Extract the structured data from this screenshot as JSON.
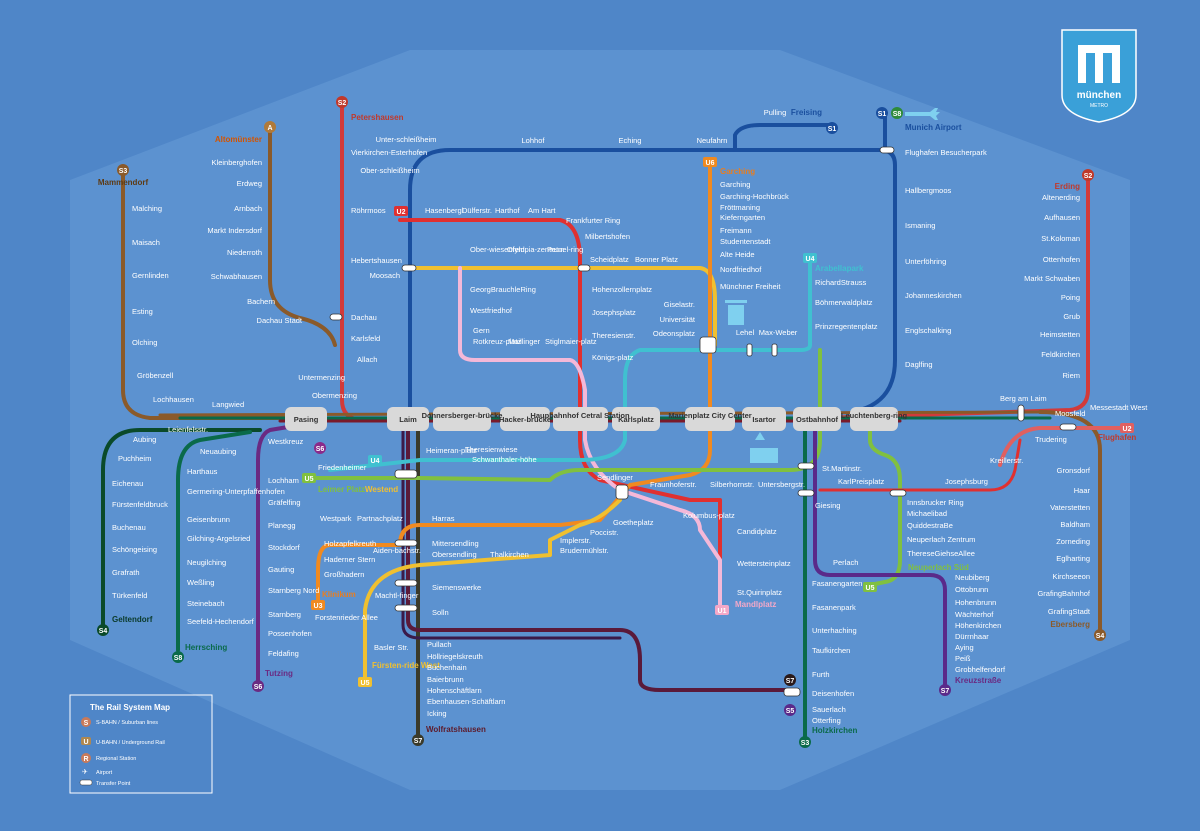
{
  "logo": {
    "name": "münchen",
    "sub": "METRO"
  },
  "legend": {
    "title": "The Rail System Map",
    "items": [
      {
        "symbol": "S",
        "label": "S-BAHN / Suburban lines",
        "color": "#c87a5a"
      },
      {
        "symbol": "U",
        "label": "U-BAHN / Underground Rail",
        "color": "#b08850"
      },
      {
        "symbol": "R",
        "label": "Regional Station",
        "color": "#c87a5a"
      },
      {
        "symbol": "✈",
        "label": "Airport",
        "color": "#ffffff"
      },
      {
        "symbol": "",
        "label": "Transfer Point",
        "color": "#ffffff"
      }
    ]
  },
  "hubs": [
    "Pasing",
    "Laim",
    "Donnersberger-brücke",
    "Hacker-brücke",
    "Haupbahnhof Cetral Station",
    "Karlsplatz",
    "Marienplatz City Center",
    "Isartor",
    "Ostbahnhof",
    "Leuchtenberg-ring"
  ],
  "lines": [
    {
      "id": "S1",
      "color": "#1a4f9e"
    },
    {
      "id": "S2",
      "color": "#d23a3a"
    },
    {
      "id": "S3",
      "color": "#6a2a82"
    },
    {
      "id": "S4",
      "color": "#8a5a2a"
    },
    {
      "id": "S6",
      "color": "#0a6a4a"
    },
    {
      "id": "S7",
      "color": "#7a1a2a"
    },
    {
      "id": "S8",
      "color": "#1a1a1a"
    },
    {
      "id": "A",
      "color": "#8a5a2a"
    },
    {
      "id": "U1",
      "color": "#2e8b3a"
    },
    {
      "id": "U2",
      "color": "#e03030"
    },
    {
      "id": "U3",
      "color": "#f08a20"
    },
    {
      "id": "U4",
      "color": "#40c0d0"
    },
    {
      "id": "U5",
      "color": "#f0c030"
    },
    {
      "id": "U6",
      "color": "#3070c0"
    },
    {
      "id": "U7",
      "color": "#f4b8d8"
    },
    {
      "id": "U8",
      "color": "#80c040"
    }
  ],
  "terminals": [
    {
      "label": "Petershausen",
      "color": "#c0392b"
    },
    {
      "label": "Mammendorf",
      "color": "#5c3a14"
    },
    {
      "label": "Altomünster",
      "color": "#d35400"
    },
    {
      "label": "Freising",
      "color": "#1a4f9e"
    },
    {
      "label": "Munich Airport",
      "color": "#1a4f9e"
    },
    {
      "label": "Erding",
      "color": "#c0392b"
    },
    {
      "label": "Garching",
      "color": "#e67e22"
    },
    {
      "label": "Arabellapark",
      "color": "#40c0d0"
    },
    {
      "label": "Olympiazentrum",
      "color": "#c0392b"
    },
    {
      "label": "Geltendorf",
      "color": "#0a3a2a"
    },
    {
      "label": "Herrsching",
      "color": "#0a6a4a"
    },
    {
      "label": "Tutzing",
      "color": "#6a2a82"
    },
    {
      "label": "Wolfratshausen",
      "color": "#5c1a2a"
    },
    {
      "label": "Holzkirchen",
      "color": "#0a6a4a"
    },
    {
      "label": "Kreuzstraße",
      "color": "#6a2a82"
    },
    {
      "label": "Ebersberg",
      "color": "#8a5a2a"
    },
    {
      "label": "Flughafen",
      "color": "#c0392b"
    },
    {
      "label": "Fürsten-ride West",
      "color": "#f0c030"
    },
    {
      "label": "Klinikum",
      "color": "#e67e22"
    },
    {
      "label": "Mandlplatz",
      "color": "#f4a8c8"
    },
    {
      "label": "Neuperlach Süd",
      "color": "#80c040"
    },
    {
      "label": "Leimer Platz",
      "color": "#80c040"
    },
    {
      "label": "Westend",
      "color": "#f0c030"
    }
  ],
  "stations": {
    "s2north": [
      "Vierkirchen-Esterhofen",
      "Röhrmoos",
      "Hebertshausen",
      "Dachau",
      "Karlsfeld",
      "Allach",
      "Untermenzing",
      "Obermenzing"
    ],
    "a_line": [
      "Kleinberghofen",
      "Erdweg",
      "Arnbach",
      "Markt Indersdorf",
      "Niederroth",
      "Schwabhausen",
      "Bachern",
      "Dachau Stadt"
    ],
    "s3west": [
      "Malching",
      "Maisach",
      "Gernlinden",
      "Esting",
      "Olching",
      "Gröbenzell",
      "Lochhausen",
      "Langwied"
    ],
    "s1north": [
      "Unter-schleißheim",
      "Ober-schleißheim",
      "Lohhof",
      "Eching",
      "Neufahrn",
      "Pulling"
    ],
    "airport": [
      "Flughafen Besucherpark",
      "Hallbergmoos",
      "Ismaning",
      "Unterföhring",
      "Johanneskirchen",
      "Englschalking",
      "Daglfing"
    ],
    "s2east": [
      "Altenerding",
      "Aufhausen",
      "St.Koloman",
      "Ottenhofen",
      "Markt Schwaben",
      "Poing",
      "Grub",
      "Heimstetten",
      "Feldkirchen",
      "Riem"
    ],
    "u6north": [
      "Garching-Hochbrück",
      "Garching",
      "Fröttmaning",
      "Kieferngarten",
      "Freimann",
      "Studentenstadt",
      "Alte Heide",
      "Nordfriedhof",
      "Münchner Freiheit",
      "Giselastr.",
      "Universität",
      "Odeonsplatz"
    ],
    "u4east": [
      "RichardStrauss",
      "Böhmerwaldplatz",
      "Prinzregentenplatz",
      "Lehel",
      "Max-Weber"
    ],
    "u1u7": [
      "Hasenbergl",
      "Dülferstr.",
      "Harthof",
      "Am Hart",
      "Frankfurter Ring",
      "Milbertshofen",
      "Scheidplatz",
      "Hohenzollernplatz",
      "Josephsplatz",
      "Theresienstr.",
      "Königs-platz"
    ],
    "u3north": [
      "Ober-wiesenfeld",
      "Olympia-zentrum",
      "Petuel-ring",
      "Bonner Platz",
      "GeorgBrauchleRing",
      "Westfriedhof",
      "Gern",
      "Rotkreuz-platz",
      "Maillinger",
      "Stiglmaier-platz"
    ],
    "s1west": [
      "Moosach",
      "Hasenbergl"
    ],
    "s4west": [
      "Aubing",
      "Leienfelsstr.",
      "Puchheim",
      "Eichenau",
      "Fürstenfeldbruck",
      "Buchenau",
      "Schöngeising",
      "Grafrath",
      "Türkenfeld"
    ],
    "s8west": [
      "Neuaubing",
      "Harthaus",
      "Germering-Unterpfaffenhofen",
      "Geisenbrunn",
      "Gilching-Argelsried",
      "Neugilching",
      "Weßling",
      "Steinebach",
      "Seefeld-Hechendorf"
    ],
    "s6west": [
      "Westkreuz",
      "Lochham",
      "Gräfelfing",
      "Planegg",
      "Stockdorf",
      "Gauting",
      "Starnberg Nord",
      "Starnberg",
      "Possenhofen",
      "Feldafing"
    ],
    "u5west": [
      "Friedenheimer",
      "Heimeran-platz",
      "Theresienwiese",
      "Schwanthaler-höhe"
    ],
    "u6south": [
      "Westpark",
      "Partnachplatz",
      "Harras",
      "Holzapfelkreuth",
      "Haderner Stern",
      "Großhadern",
      "Aiden-bachstr.",
      "Mittersendling",
      "Obersendling",
      "Thalkirchen",
      "Machtl-finger",
      "Forstenrieder Allee",
      "Basler Str.",
      "Siemenswerke",
      "Solln",
      "Implerstr.",
      "Brudermühlstr.",
      "Goetheplatz",
      "Poccistr.",
      "Sendlinger"
    ],
    "s7south": [
      "Pullach",
      "Höllriegelskreuth",
      "Buchenhain",
      "Baierbrunn",
      "Hohenschäftlarn",
      "Ebenhausen-Schäftlarn",
      "Icking"
    ],
    "u2south": [
      "Fraunhoferstr.",
      "Silberhornstr.",
      "Untersbergstr.",
      "Kolumbus-platz",
      "Candidplatz",
      "Wettersteinplatz",
      "St.Quirinplatz"
    ],
    "southeast": [
      "St.Martinstr.",
      "KarlPreisplatz",
      "Giesing",
      "Innsbrucker Ring",
      "Michaelibad",
      "QuiddestraBe",
      "Neuperlach Zentrum",
      "ThereseGiehseAllee",
      "Perlach",
      "Fasanengarten",
      "Fasanenpark",
      "Unterhaching",
      "Taufkirchen",
      "Furth",
      "Deisenhofen",
      "Sauerlach",
      "Otterfing"
    ],
    "kreuz": [
      "Neubiberg",
      "Ottobrunn",
      "Hohenbrunn",
      "Wächterhof",
      "Höhenkirchen",
      "Dürrnhaar",
      "Aying",
      "Peiß",
      "Grobhelfendorf"
    ],
    "s4east": [
      "Berg am Laim",
      "Trudering",
      "Gronsdorf",
      "Haar",
      "Vaterstetten",
      "Baldham",
      "Zorneding",
      "Eglharting",
      "Kirchseeon",
      "GrafingBahnhof",
      "GrafingStadt",
      "Messestadt West",
      "Moosfeld",
      "Kreillerstr.",
      "Josephsburg"
    ]
  }
}
